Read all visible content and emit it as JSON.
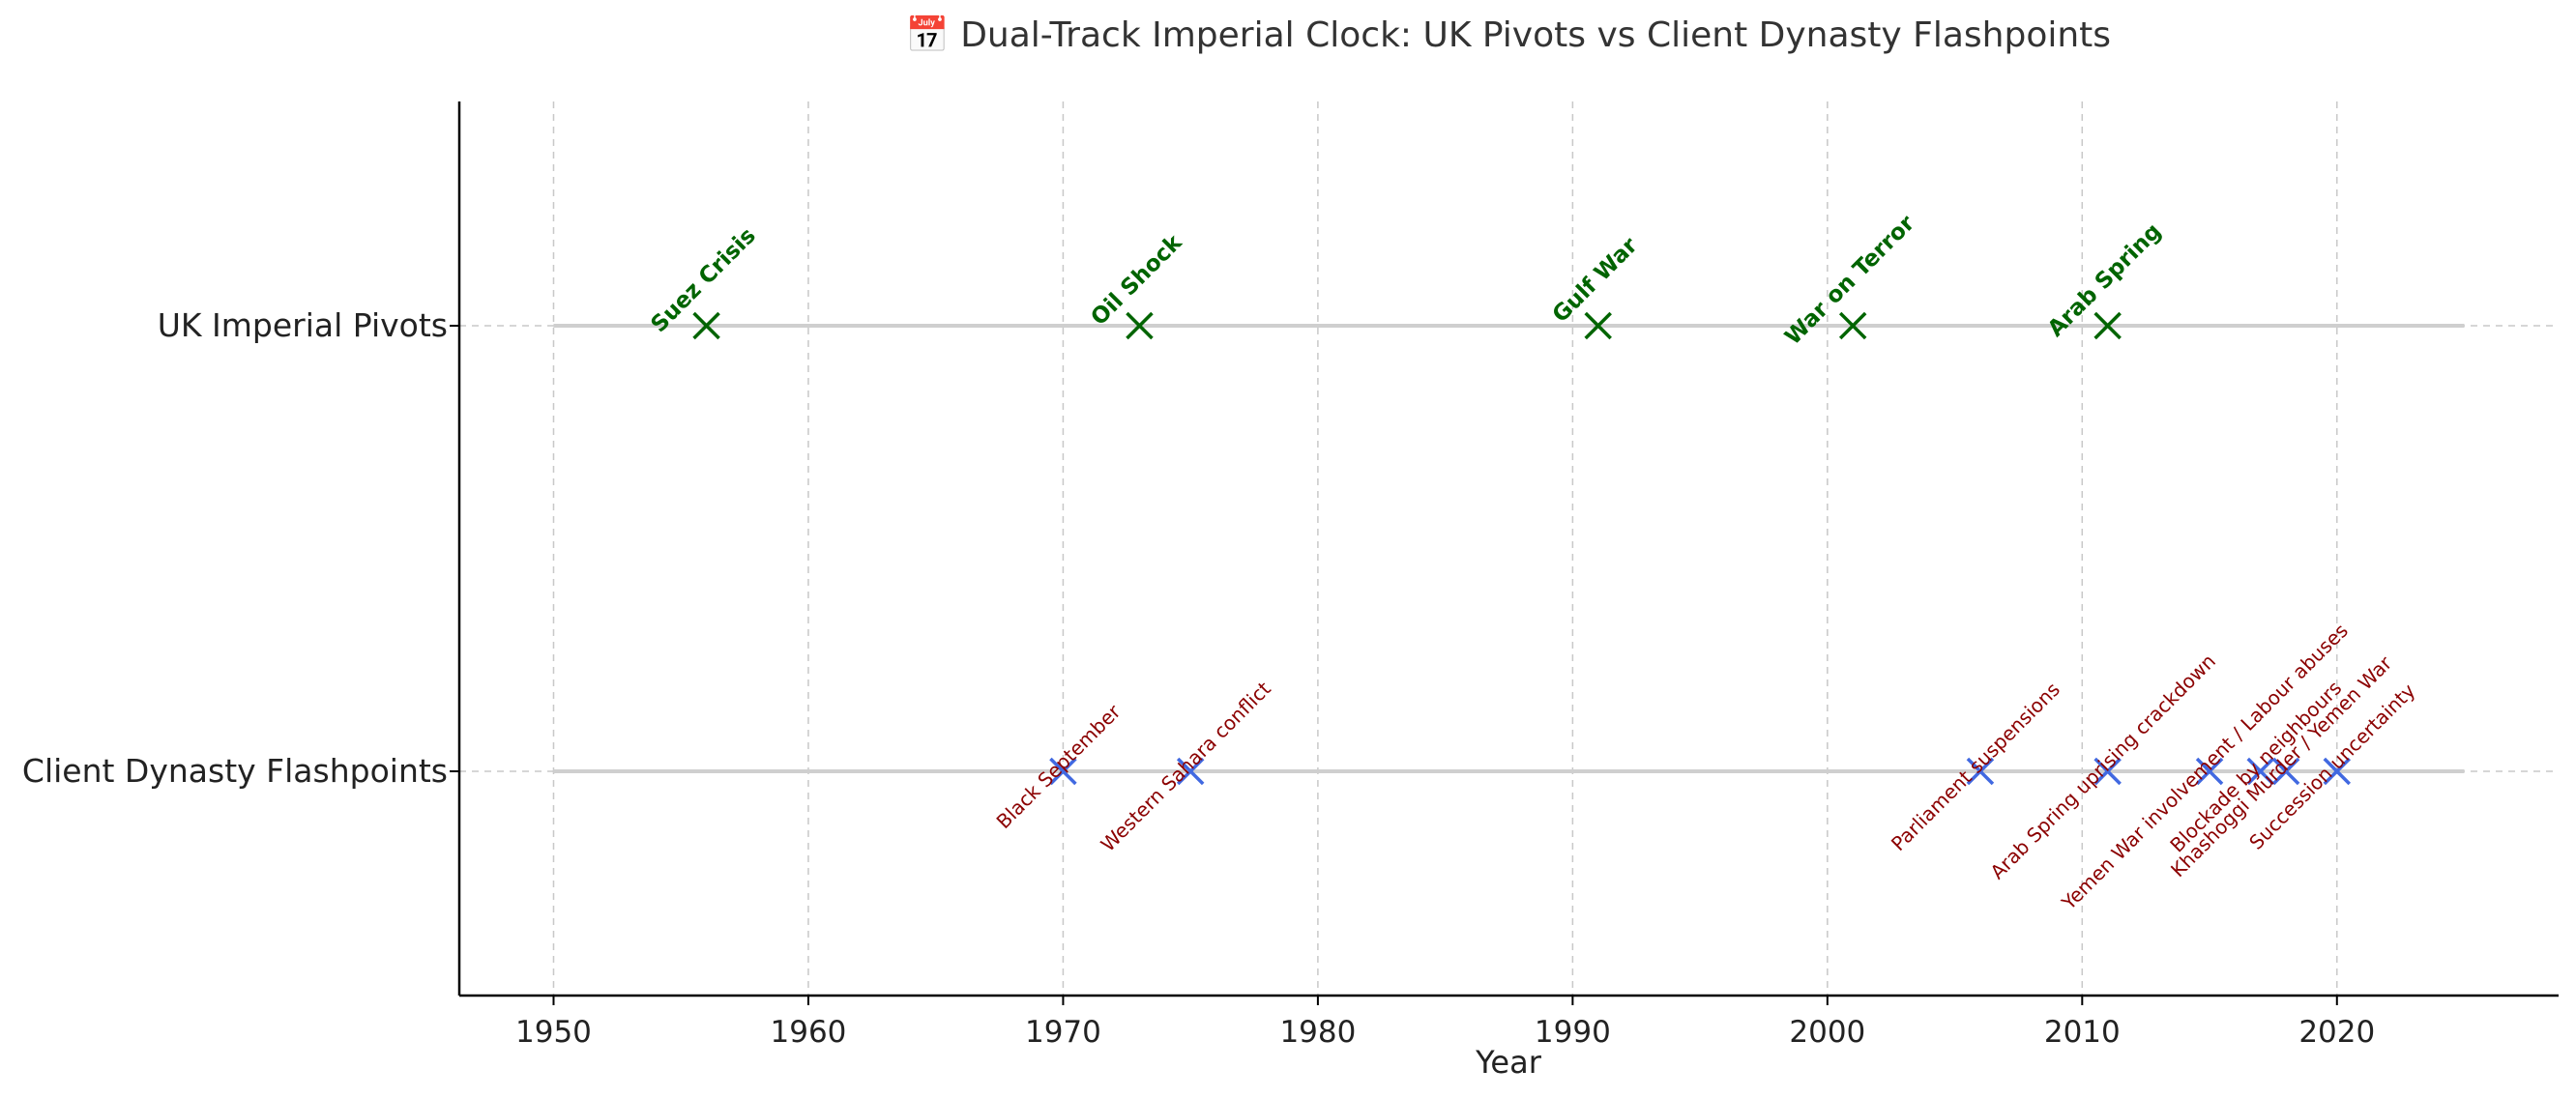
{
  "chart_data": {
    "type": "scatter",
    "title": "📅 Dual-Track Imperial Clock: UK Pivots vs Client Dynasty Flashpoints",
    "xlabel": "Year",
    "ylabel": "",
    "xlim": [
      1946.3,
      2028.7
    ],
    "x_ticks": [
      1950,
      1960,
      1970,
      1980,
      1990,
      2000,
      2010,
      2020
    ],
    "tracks": [
      "UK Imperial Pivots",
      "Client Dynasty Flashpoints"
    ],
    "grid": true,
    "track_span": [
      1950,
      2025
    ],
    "series": [
      {
        "track": "UK Imperial Pivots",
        "color": "#006400",
        "marker": "x",
        "points": [
          {
            "x": 1956,
            "label": "Suez Crisis"
          },
          {
            "x": 1973,
            "label": "Oil Shock"
          },
          {
            "x": 1991,
            "label": "Gulf War"
          },
          {
            "x": 2001,
            "label": "War on Terror"
          },
          {
            "x": 2011,
            "label": "Arab Spring"
          }
        ]
      },
      {
        "track": "Client Dynasty Flashpoints",
        "color": "#4169e1",
        "label_color": "#8b0000",
        "marker": "x",
        "points": [
          {
            "x": 1970,
            "label": "Black September"
          },
          {
            "x": 1975,
            "label": "Western Sahara conflict"
          },
          {
            "x": 2006,
            "label": "Parliament suspensions"
          },
          {
            "x": 2011,
            "label": "Arab Spring uprising crackdown"
          },
          {
            "x": 2015,
            "label": "Yemen War involvement / Labour abuses"
          },
          {
            "x": 2017,
            "label": "Blockade by neighbours"
          },
          {
            "x": 2018,
            "label": "Khashoggi Murder / Yemen War"
          },
          {
            "x": 2020,
            "label": "Succession uncertainty"
          }
        ]
      }
    ]
  }
}
